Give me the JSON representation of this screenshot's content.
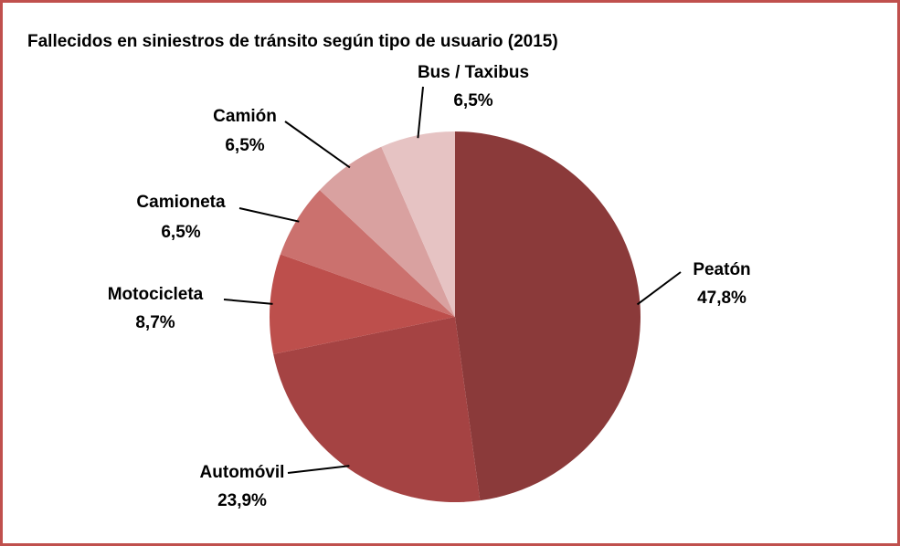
{
  "chart_data": {
    "type": "pie",
    "title": "Fallecidos  en siniestros de tránsito según tipo de usuario  (2015)",
    "categories": [
      "Peatón",
      "Automóvil",
      "Motocicleta",
      "Camioneta",
      "Camión",
      "Bus / Taxibus"
    ],
    "values": [
      47.8,
      23.9,
      8.7,
      6.5,
      6.5,
      6.5
    ],
    "value_labels": [
      "47,8%",
      "23,9%",
      "8,7%",
      "6,5%",
      "6,5%",
      "6,5%"
    ],
    "colors": [
      "#8b3a3a",
      "#a54343",
      "#bd4f4c",
      "#cb716e",
      "#d9a1a0",
      "#e6c3c3"
    ]
  }
}
